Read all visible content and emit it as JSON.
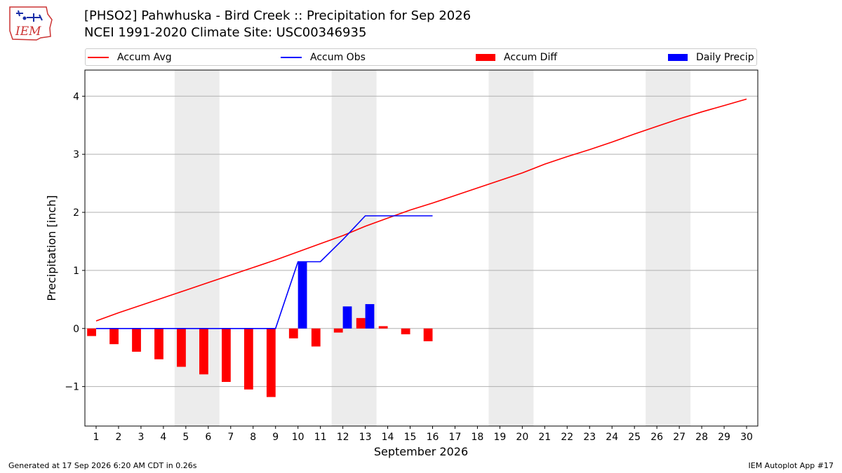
{
  "header": {
    "title_line1": "[PHSO2] Pahwhuska - Bird Creek :: Precipitation for Sep 2026",
    "title_line2": "NCEI 1991-2020 Climate Site: USC00346935",
    "logo_text": "IEM"
  },
  "legend": [
    {
      "label": "Accum Avg",
      "color": "#ff0000",
      "kind": "line"
    },
    {
      "label": "Accum Obs",
      "color": "#0000ff",
      "kind": "line"
    },
    {
      "label": "Accum Diff",
      "color": "#ff0000",
      "kind": "box"
    },
    {
      "label": "Daily Precip",
      "color": "#0000ff",
      "kind": "box"
    }
  ],
  "footer": {
    "generated": "Generated at 17 Sep 2026 6:20 AM CDT in 0.26s",
    "app": "IEM Autoplot App #17"
  },
  "chart_data": {
    "type": "bar",
    "xlabel": "September 2026",
    "ylabel": "Precipitation [inch]",
    "xlim": [
      0.5,
      30.5
    ],
    "ylim": [
      -1.68,
      4.45
    ],
    "yticks": [
      -1,
      0,
      1,
      2,
      3,
      4
    ],
    "ytick_labels": [
      "−1",
      "0",
      "1",
      "2",
      "3",
      "4"
    ],
    "xticks": [
      "1",
      "2",
      "3",
      "4",
      "5",
      "6",
      "7",
      "8",
      "9",
      "10",
      "11",
      "12",
      "13",
      "14",
      "15",
      "16",
      "17",
      "18",
      "19",
      "20",
      "21",
      "22",
      "23",
      "24",
      "25",
      "26",
      "27",
      "28",
      "29",
      "30"
    ],
    "grid": "horizontal",
    "weekend_shading": [
      [
        4.5,
        6.5
      ],
      [
        11.5,
        13.5
      ],
      [
        18.5,
        20.5
      ],
      [
        25.5,
        27.5
      ]
    ],
    "series": [
      {
        "name": "Accum Avg",
        "kind": "line",
        "color": "#ff0000",
        "x": [
          1,
          2,
          3,
          4,
          5,
          6,
          7,
          8,
          9,
          10,
          11,
          12,
          13,
          14,
          15,
          16,
          17,
          18,
          19,
          20,
          21,
          22,
          23,
          24,
          25,
          26,
          27,
          28,
          29,
          30
        ],
        "values": [
          0.13,
          0.27,
          0.4,
          0.53,
          0.66,
          0.79,
          0.92,
          1.05,
          1.18,
          1.32,
          1.46,
          1.6,
          1.76,
          1.9,
          2.04,
          2.16,
          2.29,
          2.42,
          2.55,
          2.68,
          2.83,
          2.96,
          3.08,
          3.21,
          3.35,
          3.48,
          3.61,
          3.73,
          3.84,
          3.95
        ]
      },
      {
        "name": "Accum Obs",
        "kind": "line",
        "color": "#0000ff",
        "x": [
          1,
          2,
          3,
          4,
          5,
          6,
          7,
          8,
          9,
          10,
          11,
          12,
          13,
          14,
          15,
          16
        ],
        "values": [
          0,
          0,
          0,
          0,
          0,
          0,
          0,
          0,
          0,
          1.15,
          1.15,
          1.53,
          1.94,
          1.94,
          1.94,
          1.94
        ]
      },
      {
        "name": "Accum Diff",
        "kind": "bar",
        "color": "#ff0000",
        "x": [
          1,
          2,
          3,
          4,
          5,
          6,
          7,
          8,
          9,
          10,
          11,
          12,
          13,
          14,
          15,
          16
        ],
        "values": [
          -0.13,
          -0.27,
          -0.4,
          -0.53,
          -0.66,
          -0.79,
          -0.92,
          -1.05,
          -1.18,
          -0.17,
          -0.31,
          -0.07,
          0.18,
          0.04,
          -0.1,
          -0.22
        ]
      },
      {
        "name": "Daily Precip",
        "kind": "bar",
        "color": "#0000ff",
        "x": [
          10,
          12,
          13
        ],
        "values": [
          1.15,
          0.38,
          0.42
        ]
      }
    ]
  }
}
